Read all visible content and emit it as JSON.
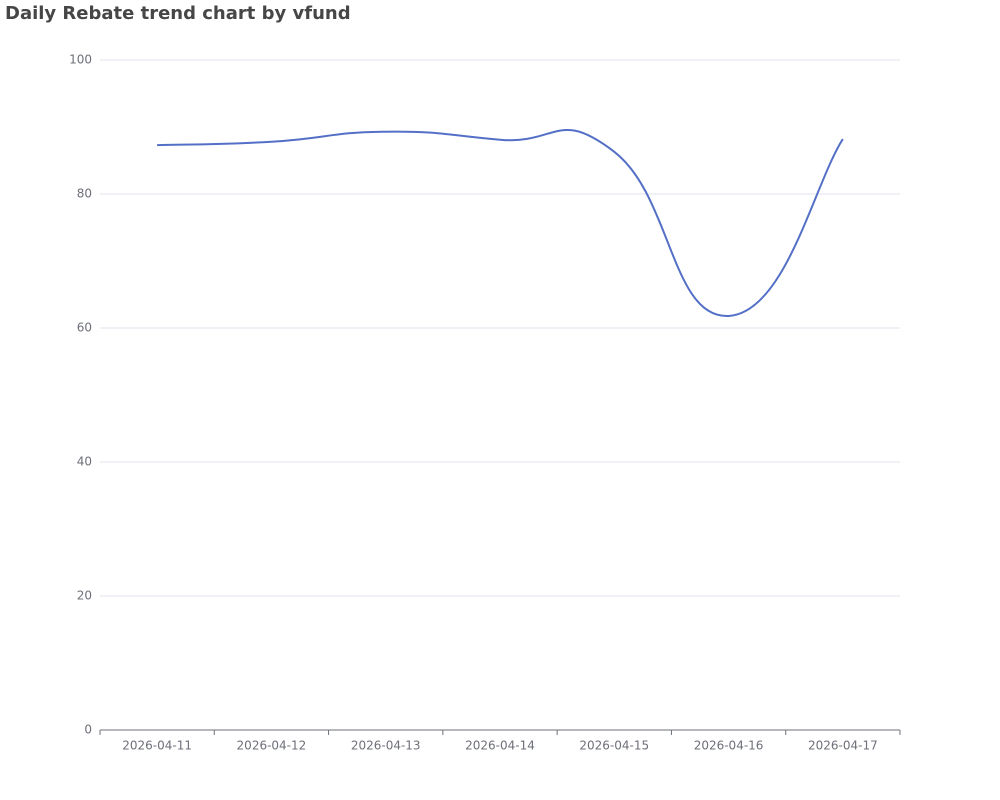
{
  "chart_data": {
    "type": "line",
    "title": "Daily Rebate trend chart by vfund",
    "categories": [
      "2026-04-11",
      "2026-04-12",
      "2026-04-13",
      "2026-04-14",
      "2026-04-15",
      "2026-04-16",
      "2026-04-17"
    ],
    "values": [
      87.3,
      87.8,
      89.3,
      88.1,
      86.3,
      61.8,
      88.2
    ],
    "color": "#5470c6",
    "smooth": true,
    "ylim": [
      0,
      100
    ],
    "yticks": [
      0,
      20,
      40,
      60,
      80,
      100
    ],
    "grid": true
  }
}
